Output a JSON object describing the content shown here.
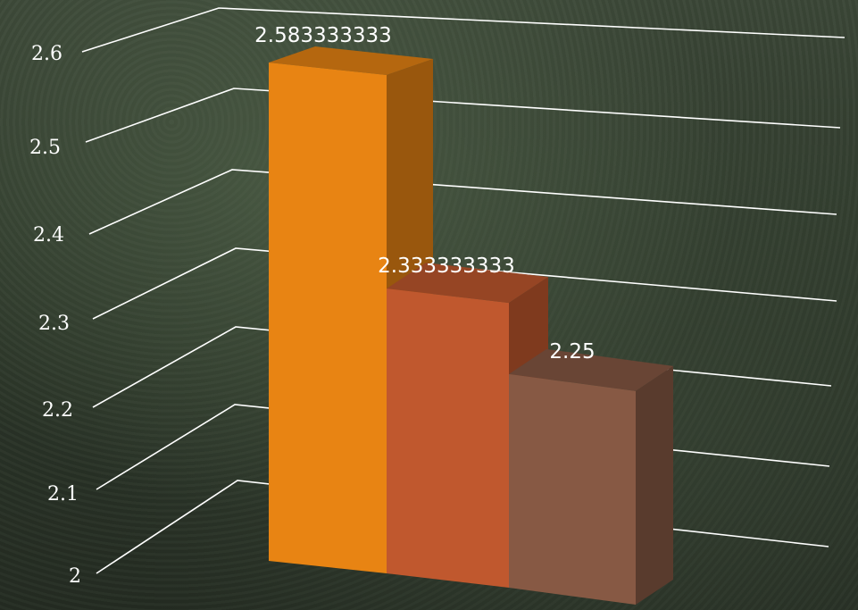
{
  "chart_data": {
    "type": "bar",
    "categories": [
      "",
      "",
      ""
    ],
    "values": [
      2.583333333,
      2.333333333,
      2.25
    ],
    "data_labels": [
      "2.583333333",
      "2.333333333",
      "2.25"
    ],
    "y_ticks": [
      "2",
      "2.1",
      "2.2",
      "2.3",
      "2.4",
      "2.5",
      "2.6"
    ],
    "ylim": [
      2,
      2.6
    ],
    "grid": true,
    "legend": "none",
    "style": "3d",
    "bar_colors": [
      "#e88413",
      "#c0582e",
      "#875944"
    ],
    "title": "",
    "xlabel": "",
    "ylabel": ""
  }
}
